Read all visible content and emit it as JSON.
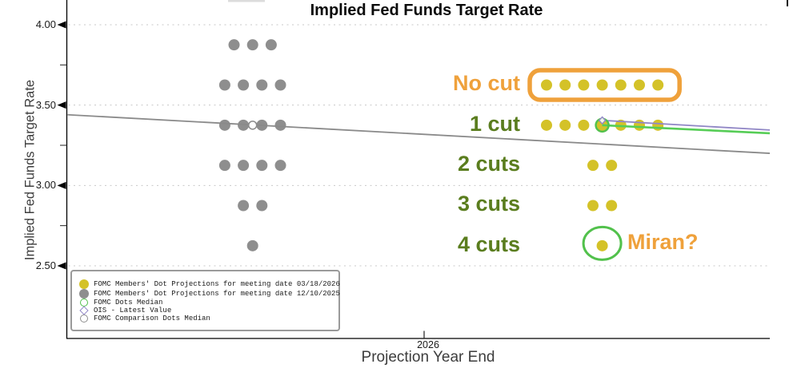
{
  "title": "Implied Fed Funds Target Rate",
  "axes": {
    "ylabel": "Implied Fed Funds Target Rate",
    "xlabel": "Projection Year End",
    "x_tick": "2026",
    "y_ticks": [
      "4.00",
      "3.50",
      "3.00",
      "2.50"
    ],
    "y_minor_ticks": [
      3.75,
      3.25,
      2.75
    ]
  },
  "colors": {
    "yellow": "#d4c228",
    "gray": "#8e8e8e",
    "gray_line": "#8a8a8a",
    "orange": "#efa13b",
    "green_text": "#5a7d1e",
    "green_line": "#56cd56",
    "green_ring": "#52c14c",
    "purple": "#9187c6",
    "grid": "#c8c8c8",
    "axis": "#000000"
  },
  "legend": {
    "items": [
      {
        "symbol": "filled-circle",
        "color_key": "yellow",
        "label": "FOMC Members' Dot Projections for meeting date 03/18/2026"
      },
      {
        "symbol": "filled-circle",
        "color_key": "gray",
        "label": "FOMC Members' Dot Projections for meeting date 12/10/2025"
      },
      {
        "symbol": "open-circle",
        "color_key": "green_ring",
        "label": "FOMC Dots Median"
      },
      {
        "symbol": "open-diamond",
        "color_key": "purple",
        "label": "OIS - Latest Value"
      },
      {
        "symbol": "open-circle",
        "color_key": "gray",
        "label": "FOMC Comparison Dots Median"
      }
    ]
  },
  "chart_data": {
    "type": "scatter",
    "title": "Implied Fed Funds Target Rate",
    "xlabel": "Projection Year End",
    "ylabel": "Implied Fed Funds Target Rate",
    "x_categories": [
      "2026"
    ],
    "ylim": [
      2.4,
      4.05
    ],
    "y_gridlines": [
      4.0,
      3.5,
      3.0,
      2.5
    ],
    "grid": "horizontal dashed",
    "legend_position": "lower-left",
    "series": [
      {
        "name": "FOMC Members' Dot Projections for meeting date 12/10/2025",
        "color_key": "gray",
        "marker": "filled-circle",
        "rows": [
          {
            "rate": 3.875,
            "count": 3
          },
          {
            "rate": 3.625,
            "count": 4
          },
          {
            "rate": 3.375,
            "count": 4,
            "comparison_median": true
          },
          {
            "rate": 3.125,
            "count": 4
          },
          {
            "rate": 2.875,
            "count": 2
          },
          {
            "rate": 2.625,
            "count": 1
          }
        ]
      },
      {
        "name": "FOMC Members' Dot Projections for meeting date 03/18/2026",
        "color_key": "yellow",
        "marker": "filled-circle",
        "rows": [
          {
            "rate": 3.625,
            "count": 7,
            "cut_label": "No cut",
            "boxed": true
          },
          {
            "rate": 3.375,
            "count": 7,
            "cut_label": "1 cut",
            "median_index": 3
          },
          {
            "rate": 3.125,
            "count": 2,
            "cut_label": "2 cuts"
          },
          {
            "rate": 2.875,
            "count": 2,
            "cut_label": "3 cuts"
          },
          {
            "rate": 2.625,
            "count": 1,
            "cut_label": "4 cuts",
            "circled": true
          }
        ]
      }
    ],
    "fomc_dots_median": 3.375,
    "ois_latest": {
      "rate": 3.405
    },
    "lines": [
      {
        "name": "fomc-comparison-median-path",
        "color_key": "gray_line",
        "width": 1.8,
        "anchor": "plot-left",
        "start_rate": 3.44,
        "end_rate": 3.2
      },
      {
        "name": "ois-path",
        "color_key": "purple",
        "width": 1.8,
        "anchor": "median-dot",
        "start_rate": 3.405,
        "end_rate": 3.345
      },
      {
        "name": "fomc-median-path",
        "color_key": "green_line",
        "width": 2.6,
        "anchor": "median-dot",
        "start_rate": 3.375,
        "end_rate": 3.325
      }
    ],
    "cut_labels": [
      {
        "text": "No cut",
        "rate": 3.625,
        "color_key": "orange"
      },
      {
        "text": "1 cut",
        "rate": 3.375,
        "color_key": "green_text"
      },
      {
        "text": "2 cuts",
        "rate": 3.125,
        "color_key": "green_text"
      },
      {
        "text": "3 cuts",
        "rate": 2.875,
        "color_key": "green_text"
      },
      {
        "text": "4 cuts",
        "rate": 2.625,
        "color_key": "green_text"
      }
    ],
    "miran_annotation": {
      "text": "Miran?",
      "rate": 2.625,
      "color_key": "orange"
    }
  }
}
